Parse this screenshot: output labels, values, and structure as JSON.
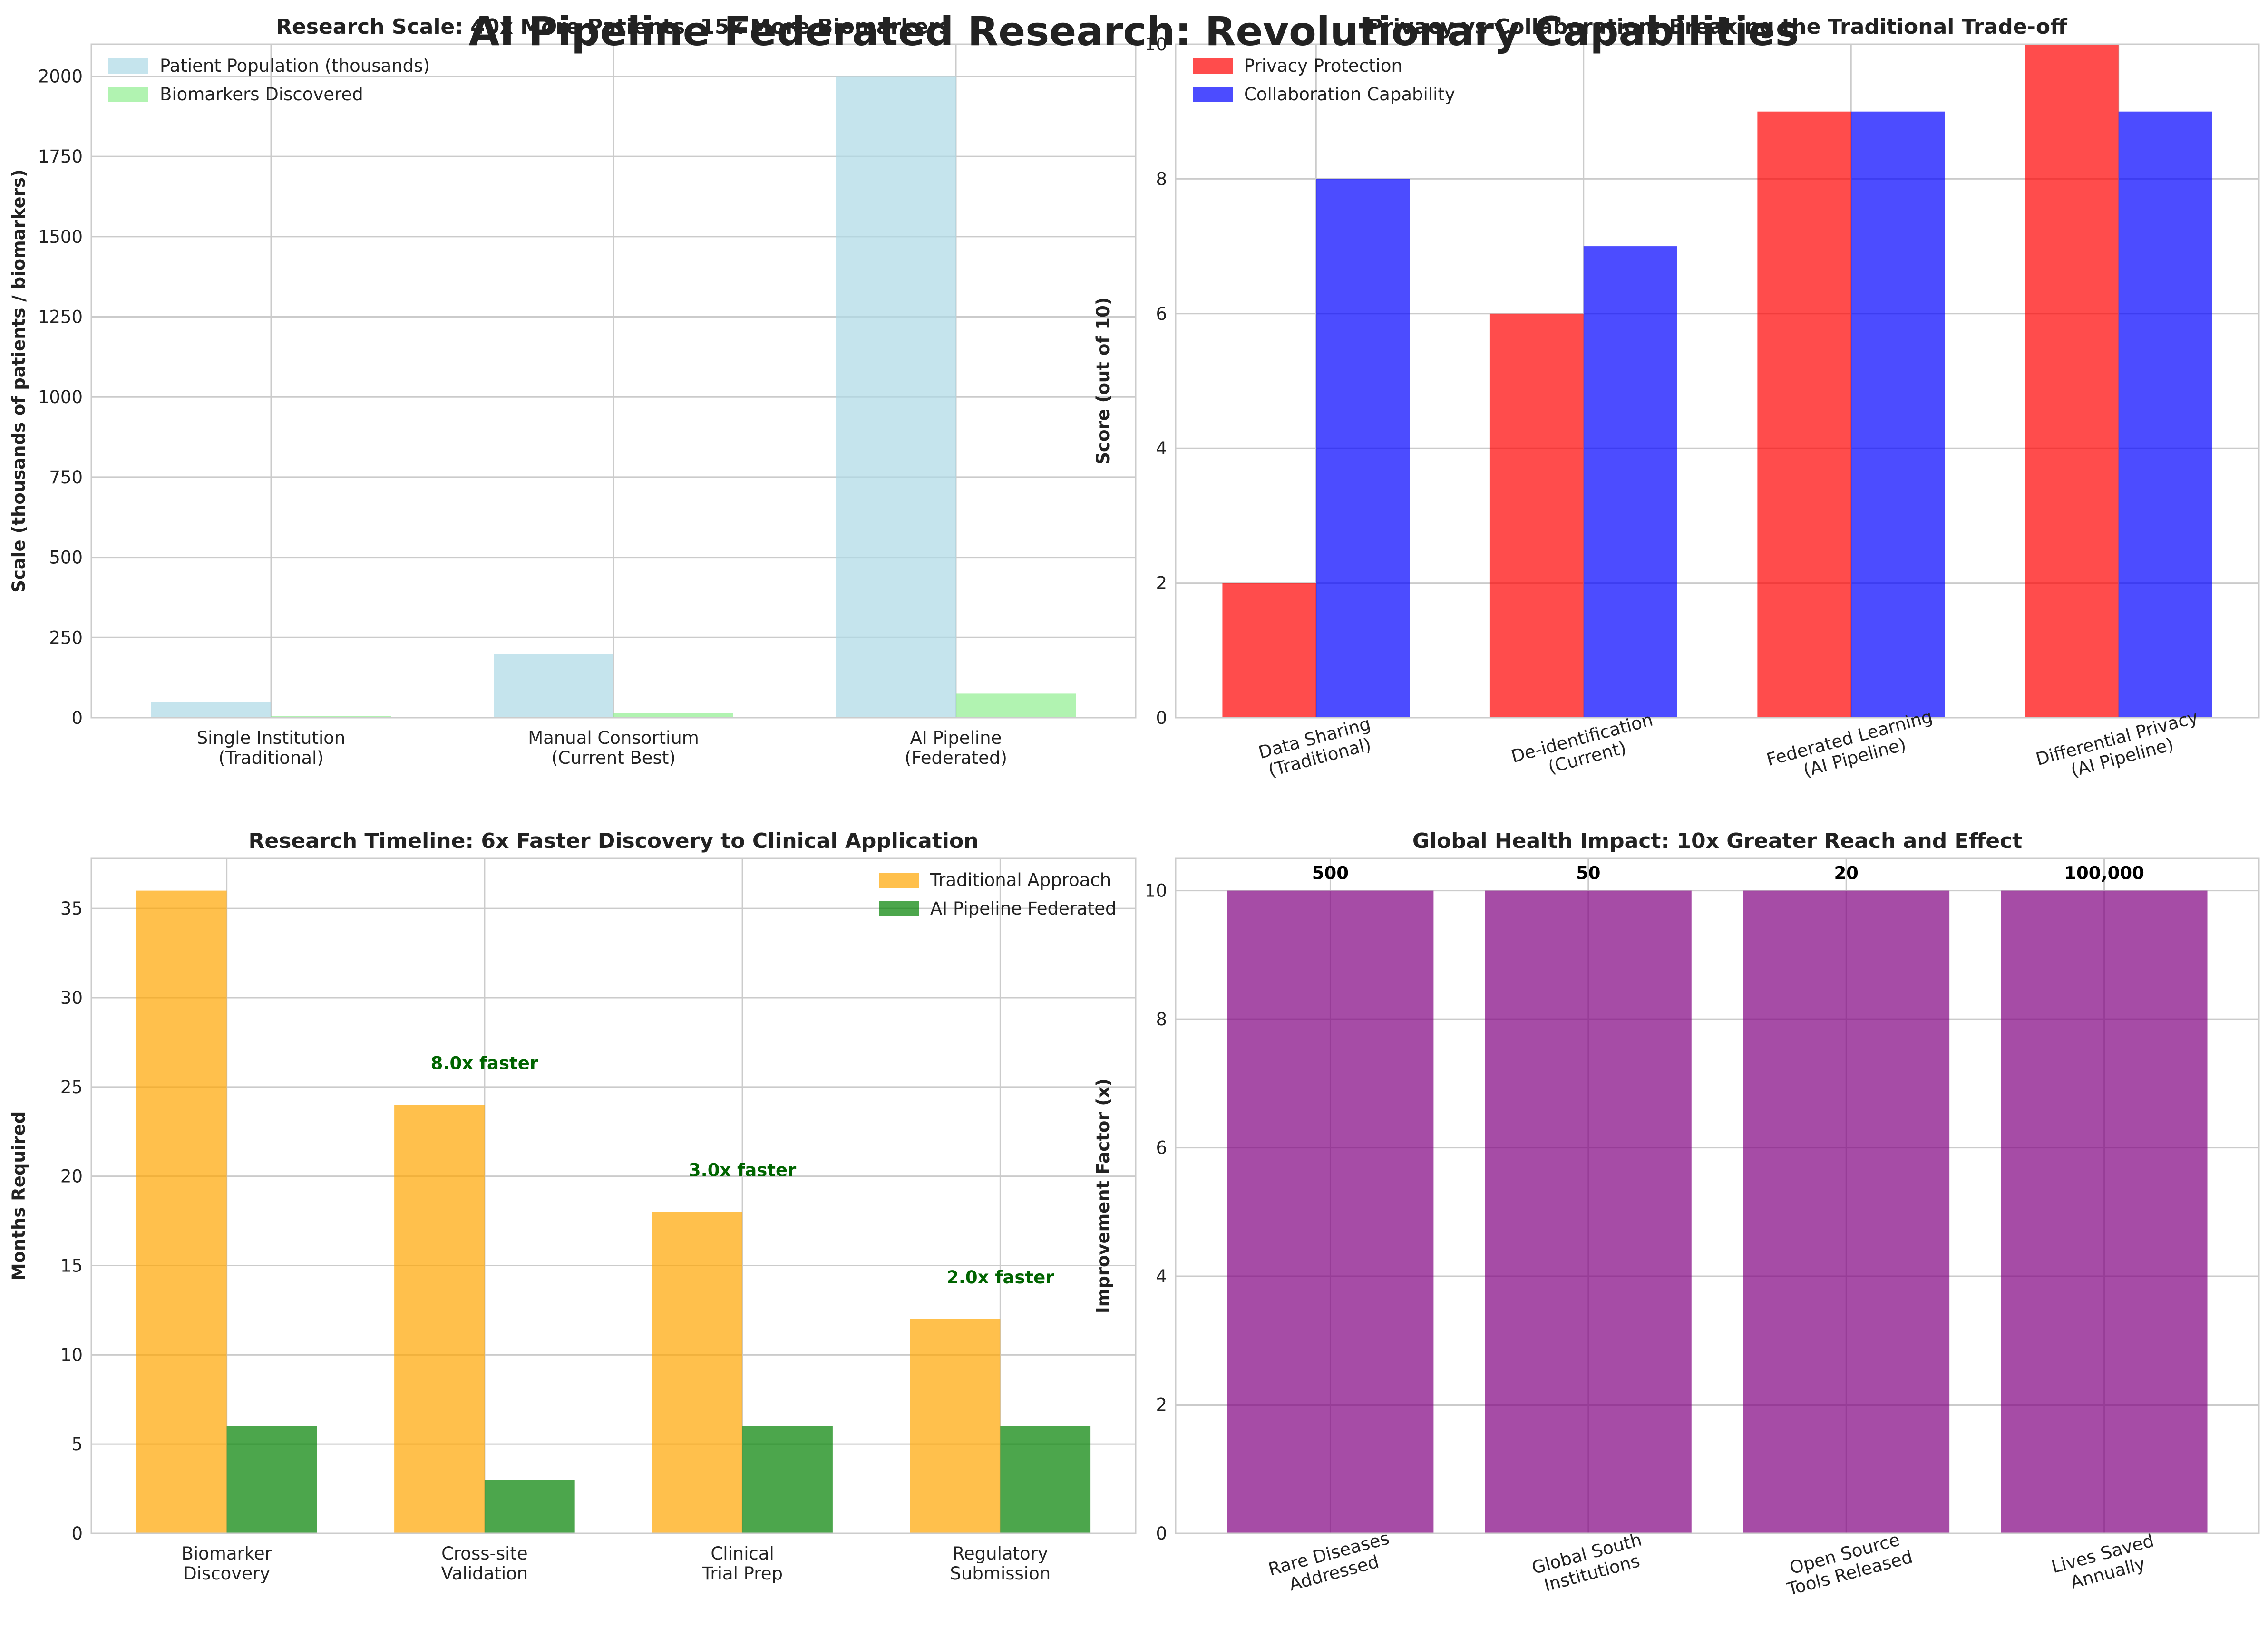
{
  "figure": {
    "suptitle": "AI Pipeline Federated Research: Revolutionary Capabilities"
  },
  "colors": {
    "grid": "#cbcbcb",
    "axes_edge": "#cccccc",
    "text": "#222222",
    "annotation_green": "#006400"
  },
  "chart_data": [
    {
      "type": "bar",
      "title": "Research Scale: 40x More Patients, 15x More Biomarkers",
      "xlabel": "",
      "ylabel": "Scale (thousands of patients / biomarkers)",
      "categories": [
        "Single Institution\n(Traditional)",
        "Manual Consortium\n(Current Best)",
        "AI Pipeline\n(Federated)"
      ],
      "series": [
        {
          "name": "Patient Population (thousands)",
          "values": [
            50,
            200,
            2000
          ],
          "color": "#add8e6"
        },
        {
          "name": "Biomarkers Discovered",
          "values": [
            5,
            15,
            75
          ],
          "color": "#90ee90"
        }
      ],
      "ylim": [
        0,
        2100
      ],
      "yticks": [
        0,
        250,
        500,
        750,
        1000,
        1250,
        1500,
        1750,
        2000
      ],
      "legend": "top-left",
      "grid": true
    },
    {
      "type": "bar",
      "title": "Privacy vs Collaboration: Breaking the Traditional Trade-off",
      "xlabel": "",
      "ylabel": "Score (out of 10)",
      "categories": [
        "Data Sharing\n(Traditional)",
        "De-identification\n(Current)",
        "Federated Learning\n(AI Pipeline)",
        "Differential Privacy\n(AI Pipeline)"
      ],
      "series": [
        {
          "name": "Privacy Protection",
          "values": [
            2,
            6,
            9,
            10
          ],
          "color": "#ff0000"
        },
        {
          "name": "Collaboration Capability",
          "values": [
            8,
            7,
            9,
            9
          ],
          "color": "#0000ff"
        }
      ],
      "ylim": [
        0,
        10
      ],
      "yticks": [
        0,
        2,
        4,
        6,
        8,
        10
      ],
      "legend": "top-left",
      "grid": true,
      "rotated_ticks": true
    },
    {
      "type": "bar",
      "title": "Research Timeline: 6x Faster Discovery to Clinical Application",
      "xlabel": "",
      "ylabel": "Months Required",
      "categories": [
        "Biomarker\nDiscovery",
        "Cross-site\nValidation",
        "Clinical\nTrial Prep",
        "Regulatory\nSubmission"
      ],
      "series": [
        {
          "name": "Traditional Approach",
          "values": [
            36,
            24,
            18,
            12
          ],
          "color": "#ffa500"
        },
        {
          "name": "AI Pipeline Federated",
          "values": [
            6,
            3,
            6,
            6
          ],
          "color": "#008000"
        }
      ],
      "annotations": [
        {
          "category_index": 1,
          "y": 26,
          "text": "8.0x faster"
        },
        {
          "category_index": 2,
          "y": 20,
          "text": "3.0x faster"
        },
        {
          "category_index": 3,
          "y": 14,
          "text": "2.0x faster"
        }
      ],
      "ylim": [
        0,
        37.8
      ],
      "yticks": [
        0,
        5,
        10,
        15,
        20,
        25,
        30,
        35
      ],
      "legend": "top-right",
      "grid": true
    },
    {
      "type": "bar",
      "title": "Global Health Impact: 10x Greater Reach and Effect",
      "xlabel": "",
      "ylabel": "Improvement Factor (x)",
      "categories": [
        "Rare Diseases\nAddressed",
        "Global South\nInstitutions",
        "Open Source\nTools Released",
        "Lives Saved\nAnnually"
      ],
      "series": [
        {
          "values": [
            10,
            10,
            10,
            10
          ],
          "color": "#800080"
        }
      ],
      "bar_labels": [
        "500",
        "50",
        "20",
        "100,000"
      ],
      "ylim": [
        0,
        10.5
      ],
      "yticks": [
        0,
        2,
        4,
        6,
        8,
        10
      ],
      "grid": true,
      "rotated_ticks": true
    }
  ]
}
